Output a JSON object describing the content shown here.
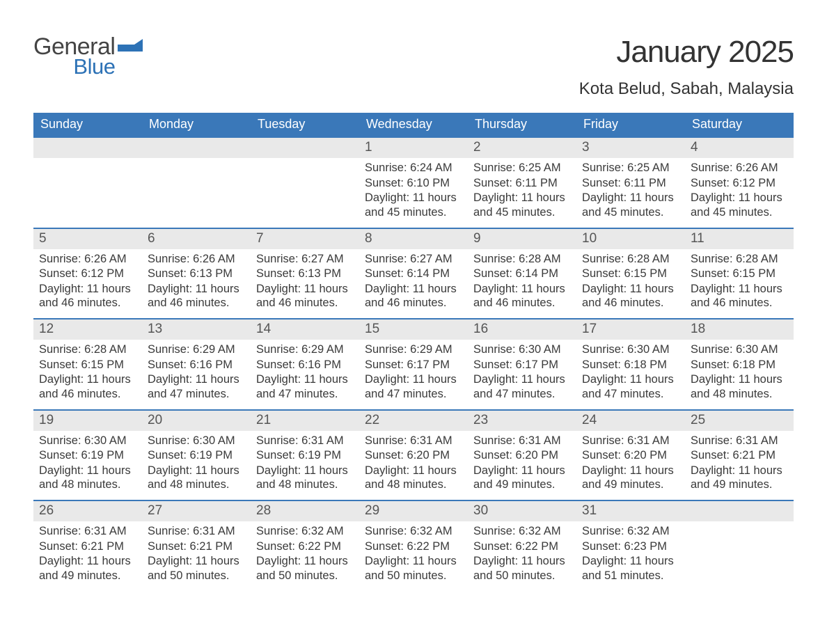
{
  "logo": {
    "word1": "General",
    "word2": "Blue"
  },
  "title": "January 2025",
  "location": "Kota Belud, Sabah, Malaysia",
  "colors": {
    "header_bg": "#3a78b9",
    "header_text": "#ffffff",
    "daynum_bg": "#e9e9e9",
    "border": "#3a78b9",
    "logo_blue": "#2d72b6",
    "logo_gray": "#444444",
    "body_text": "#3a3a3a"
  },
  "layout": {
    "columns": 7,
    "rows": 5,
    "leading_blanks": 3
  },
  "weekdays": [
    "Sunday",
    "Monday",
    "Tuesday",
    "Wednesday",
    "Thursday",
    "Friday",
    "Saturday"
  ],
  "labels": {
    "sunrise": "Sunrise: ",
    "sunset": "Sunset: ",
    "daylight": "Daylight: "
  },
  "days": [
    {
      "n": 1,
      "sunrise": "6:24 AM",
      "sunset": "6:10 PM",
      "daylight": "11 hours and 45 minutes."
    },
    {
      "n": 2,
      "sunrise": "6:25 AM",
      "sunset": "6:11 PM",
      "daylight": "11 hours and 45 minutes."
    },
    {
      "n": 3,
      "sunrise": "6:25 AM",
      "sunset": "6:11 PM",
      "daylight": "11 hours and 45 minutes."
    },
    {
      "n": 4,
      "sunrise": "6:26 AM",
      "sunset": "6:12 PM",
      "daylight": "11 hours and 45 minutes."
    },
    {
      "n": 5,
      "sunrise": "6:26 AM",
      "sunset": "6:12 PM",
      "daylight": "11 hours and 46 minutes."
    },
    {
      "n": 6,
      "sunrise": "6:26 AM",
      "sunset": "6:13 PM",
      "daylight": "11 hours and 46 minutes."
    },
    {
      "n": 7,
      "sunrise": "6:27 AM",
      "sunset": "6:13 PM",
      "daylight": "11 hours and 46 minutes."
    },
    {
      "n": 8,
      "sunrise": "6:27 AM",
      "sunset": "6:14 PM",
      "daylight": "11 hours and 46 minutes."
    },
    {
      "n": 9,
      "sunrise": "6:28 AM",
      "sunset": "6:14 PM",
      "daylight": "11 hours and 46 minutes."
    },
    {
      "n": 10,
      "sunrise": "6:28 AM",
      "sunset": "6:15 PM",
      "daylight": "11 hours and 46 minutes."
    },
    {
      "n": 11,
      "sunrise": "6:28 AM",
      "sunset": "6:15 PM",
      "daylight": "11 hours and 46 minutes."
    },
    {
      "n": 12,
      "sunrise": "6:28 AM",
      "sunset": "6:15 PM",
      "daylight": "11 hours and 46 minutes."
    },
    {
      "n": 13,
      "sunrise": "6:29 AM",
      "sunset": "6:16 PM",
      "daylight": "11 hours and 47 minutes."
    },
    {
      "n": 14,
      "sunrise": "6:29 AM",
      "sunset": "6:16 PM",
      "daylight": "11 hours and 47 minutes."
    },
    {
      "n": 15,
      "sunrise": "6:29 AM",
      "sunset": "6:17 PM",
      "daylight": "11 hours and 47 minutes."
    },
    {
      "n": 16,
      "sunrise": "6:30 AM",
      "sunset": "6:17 PM",
      "daylight": "11 hours and 47 minutes."
    },
    {
      "n": 17,
      "sunrise": "6:30 AM",
      "sunset": "6:18 PM",
      "daylight": "11 hours and 47 minutes."
    },
    {
      "n": 18,
      "sunrise": "6:30 AM",
      "sunset": "6:18 PM",
      "daylight": "11 hours and 48 minutes."
    },
    {
      "n": 19,
      "sunrise": "6:30 AM",
      "sunset": "6:19 PM",
      "daylight": "11 hours and 48 minutes."
    },
    {
      "n": 20,
      "sunrise": "6:30 AM",
      "sunset": "6:19 PM",
      "daylight": "11 hours and 48 minutes."
    },
    {
      "n": 21,
      "sunrise": "6:31 AM",
      "sunset": "6:19 PM",
      "daylight": "11 hours and 48 minutes."
    },
    {
      "n": 22,
      "sunrise": "6:31 AM",
      "sunset": "6:20 PM",
      "daylight": "11 hours and 48 minutes."
    },
    {
      "n": 23,
      "sunrise": "6:31 AM",
      "sunset": "6:20 PM",
      "daylight": "11 hours and 49 minutes."
    },
    {
      "n": 24,
      "sunrise": "6:31 AM",
      "sunset": "6:20 PM",
      "daylight": "11 hours and 49 minutes."
    },
    {
      "n": 25,
      "sunrise": "6:31 AM",
      "sunset": "6:21 PM",
      "daylight": "11 hours and 49 minutes."
    },
    {
      "n": 26,
      "sunrise": "6:31 AM",
      "sunset": "6:21 PM",
      "daylight": "11 hours and 49 minutes."
    },
    {
      "n": 27,
      "sunrise": "6:31 AM",
      "sunset": "6:21 PM",
      "daylight": "11 hours and 50 minutes."
    },
    {
      "n": 28,
      "sunrise": "6:32 AM",
      "sunset": "6:22 PM",
      "daylight": "11 hours and 50 minutes."
    },
    {
      "n": 29,
      "sunrise": "6:32 AM",
      "sunset": "6:22 PM",
      "daylight": "11 hours and 50 minutes."
    },
    {
      "n": 30,
      "sunrise": "6:32 AM",
      "sunset": "6:22 PM",
      "daylight": "11 hours and 50 minutes."
    },
    {
      "n": 31,
      "sunrise": "6:32 AM",
      "sunset": "6:23 PM",
      "daylight": "11 hours and 51 minutes."
    }
  ]
}
